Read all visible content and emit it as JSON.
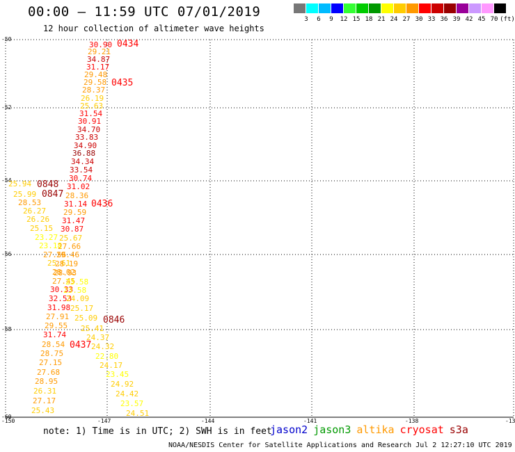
{
  "header": {
    "title": "00:00 – 11:59 UTC 07/01/2019",
    "subtitle": "12 hour collection of altimeter wave heights"
  },
  "colorbar": {
    "unit": "(ft)",
    "colors": [
      "#777777",
      "#00ffff",
      "#00bbff",
      "#0000ff",
      "#33ff33",
      "#00cc00",
      "#009900",
      "#ffff00",
      "#ffcc00",
      "#ff9900",
      "#ff0000",
      "#cc0000",
      "#990000",
      "#990099",
      "#cc99ff",
      "#ff99ff",
      "#000000"
    ],
    "labels": [
      "3",
      "6",
      "9",
      "12",
      "15",
      "18",
      "21",
      "24",
      "27",
      "30",
      "33",
      "36",
      "39",
      "42",
      "45",
      "70"
    ]
  },
  "axes": {
    "lat_labels": [
      "-50",
      "-52",
      "-54",
      "-56",
      "-58",
      "-60"
    ],
    "lon_labels": [
      "-150",
      "-147",
      "-144",
      "-141",
      "-138",
      "-13"
    ]
  },
  "points": [
    {
      "t": "30.90",
      "c": "#ff0000"
    },
    {
      "t": "29.21",
      "c": "#ff9900"
    },
    {
      "t": "34.87",
      "c": "#cc0000"
    },
    {
      "t": "31.17",
      "c": "#ff0000"
    },
    {
      "t": "29.48",
      "c": "#ff9900"
    },
    {
      "t": "29.58",
      "c": "#ff9900"
    },
    {
      "t": "28.37",
      "c": "#ff9900"
    },
    {
      "t": "26.19",
      "c": "#ffcc00"
    },
    {
      "t": "25.63",
      "c": "#ffcc00"
    },
    {
      "t": "31.54",
      "c": "#ff0000"
    },
    {
      "t": "30.91",
      "c": "#ff0000"
    },
    {
      "t": "34.70",
      "c": "#cc0000"
    },
    {
      "t": "33.83",
      "c": "#cc0000"
    },
    {
      "t": "34.90",
      "c": "#cc0000"
    },
    {
      "t": "36.88",
      "c": "#990000"
    },
    {
      "t": "34.34",
      "c": "#cc0000"
    },
    {
      "t": "33.54",
      "c": "#cc0000"
    },
    {
      "t": "30.74",
      "c": "#ff0000"
    },
    {
      "t": "25.94",
      "c": "#ffcc00"
    },
    {
      "t": "31.02",
      "c": "#ff0000"
    },
    {
      "t": "25.99",
      "c": "#ffcc00"
    },
    {
      "t": "28.36",
      "c": "#ff9900"
    },
    {
      "t": "28.53",
      "c": "#ff9900"
    },
    {
      "t": "31.14",
      "c": "#ff0000"
    },
    {
      "t": "26.27",
      "c": "#ffcc00"
    },
    {
      "t": "29.59",
      "c": "#ff9900"
    },
    {
      "t": "26.26",
      "c": "#ffcc00"
    },
    {
      "t": "31.47",
      "c": "#ff0000"
    },
    {
      "t": "25.15",
      "c": "#ffcc00"
    },
    {
      "t": "30.87",
      "c": "#ff0000"
    },
    {
      "t": "23.27",
      "c": "#ffff00"
    },
    {
      "t": "25.67",
      "c": "#ffcc00"
    },
    {
      "t": "23.18",
      "c": "#ffff00"
    },
    {
      "t": "27.66",
      "c": "#ff9900"
    },
    {
      "t": "27.56",
      "c": "#ff9900"
    },
    {
      "t": "29.46",
      "c": "#ff9900"
    },
    {
      "t": "25.61",
      "c": "#ffcc00"
    },
    {
      "t": "28.19",
      "c": "#ff9900"
    },
    {
      "t": "28.02",
      "c": "#ff9900"
    },
    {
      "t": "28.93",
      "c": "#ff9900"
    },
    {
      "t": "27.45",
      "c": "#ff9900"
    },
    {
      "t": "23.58",
      "c": "#ffff00"
    },
    {
      "t": "30.33",
      "c": "#ff0000"
    },
    {
      "t": "23.58",
      "c": "#ffff00"
    },
    {
      "t": "32.53",
      "c": "#ff0000"
    },
    {
      "t": "24.09",
      "c": "#ffcc00"
    },
    {
      "t": "31.98",
      "c": "#ff0000"
    },
    {
      "t": "25.17",
      "c": "#ffcc00"
    },
    {
      "t": "27.91",
      "c": "#ff9900"
    },
    {
      "t": "25.09",
      "c": "#ffcc00"
    },
    {
      "t": "29.55",
      "c": "#ff9900"
    },
    {
      "t": "25.41",
      "c": "#ffcc00"
    },
    {
      "t": "31.74",
      "c": "#ff0000"
    },
    {
      "t": "24.37",
      "c": "#ffcc00"
    },
    {
      "t": "28.54",
      "c": "#ff9900"
    },
    {
      "t": "24.32",
      "c": "#ffcc00"
    },
    {
      "t": "28.75",
      "c": "#ff9900"
    },
    {
      "t": "22.80",
      "c": "#ffff00"
    },
    {
      "t": "27.15",
      "c": "#ff9900"
    },
    {
      "t": "24.17",
      "c": "#ffcc00"
    },
    {
      "t": "27.68",
      "c": "#ff9900"
    },
    {
      "t": "23.45",
      "c": "#ffff00"
    },
    {
      "t": "28.95",
      "c": "#ff9900"
    },
    {
      "t": "24.92",
      "c": "#ffcc00"
    },
    {
      "t": "26.31",
      "c": "#ffcc00"
    },
    {
      "t": "24.42",
      "c": "#ffcc00"
    },
    {
      "t": "27.17",
      "c": "#ff9900"
    },
    {
      "t": "23.57",
      "c": "#ffff00"
    },
    {
      "t": "25.43",
      "c": "#ffcc00"
    },
    {
      "t": "24.51",
      "c": "#ffcc00"
    }
  ],
  "pass_labels": [
    {
      "t": "0434",
      "c": "#ff0000"
    },
    {
      "t": "0435",
      "c": "#ff0000"
    },
    {
      "t": "0848",
      "c": "#990000"
    },
    {
      "t": "0847",
      "c": "#990000"
    },
    {
      "t": "0436",
      "c": "#ff0000"
    },
    {
      "t": "0846",
      "c": "#990000"
    },
    {
      "t": "0437",
      "c": "#ff0000"
    }
  ],
  "footer": {
    "note": "note: 1) Time is in UTC; 2) SWH is in feet",
    "legend": [
      {
        "name": "jason2",
        "color": "#0000cc"
      },
      {
        "name": "jason3",
        "color": "#009900"
      },
      {
        "name": "altika",
        "color": "#ff9900"
      },
      {
        "name": "cryosat",
        "color": "#ff0000"
      },
      {
        "name": "s3a",
        "color": "#990000"
      }
    ],
    "credit": "NOAA/NESDIS Center for Satellite Applications and Research    Jul  2 12:27:10 UTC 2019"
  }
}
